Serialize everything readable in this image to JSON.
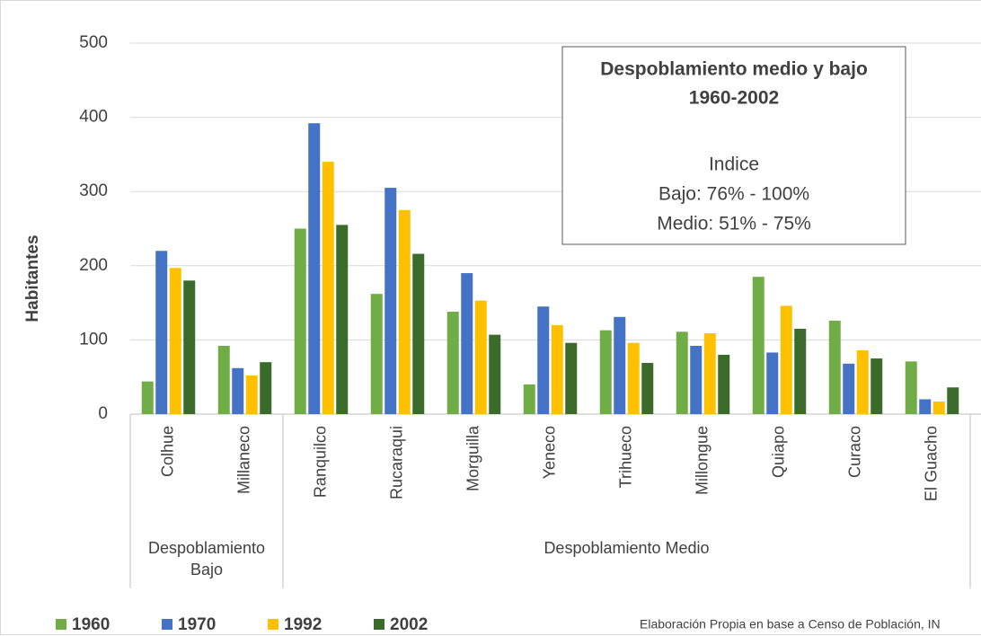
{
  "chart_data": {
    "type": "bar",
    "inset_box": {
      "title_lines": [
        "Despoblamiento medio y bajo",
        "1960-2002"
      ],
      "lines": [
        "Indice",
        "Bajo: 76% - 100%",
        "Medio: 51% - 75%"
      ]
    },
    "y_label": "Habitantes",
    "groups": [
      {
        "name": "Despoblamiento Bajo",
        "categories": [
          "Colhue",
          "Millaneco"
        ]
      },
      {
        "name": "Despoblamiento Medio",
        "categories": [
          "Ranquilco",
          "Rucaraqui",
          "Morguilla",
          "Yeneco",
          "Trihueco",
          "Millongue",
          "Quiapo",
          "Curaco",
          "El Guacho"
        ]
      }
    ],
    "series": [
      {
        "name": "1960",
        "color": "#70ad47",
        "values": [
          44,
          92,
          250,
          162,
          138,
          40,
          113,
          111,
          185,
          126,
          71
        ]
      },
      {
        "name": "1970",
        "color": "#4472c4",
        "values": [
          220,
          62,
          392,
          305,
          190,
          145,
          131,
          92,
          83,
          68,
          20
        ]
      },
      {
        "name": "1992",
        "color": "#ffc000",
        "values": [
          197,
          52,
          340,
          275,
          153,
          120,
          96,
          109,
          146,
          86,
          17
        ]
      },
      {
        "name": "2002",
        "color": "#3b6b2a",
        "values": [
          180,
          70,
          255,
          216,
          107,
          96,
          69,
          80,
          115,
          75,
          36
        ]
      }
    ],
    "ylim": [
      0,
      500
    ],
    "yticks": [
      0,
      100,
      200,
      300,
      400,
      500
    ],
    "grid": true,
    "legend": "bottom-left",
    "source": "Elaboración Propia en base a Censo de Población, IN"
  }
}
